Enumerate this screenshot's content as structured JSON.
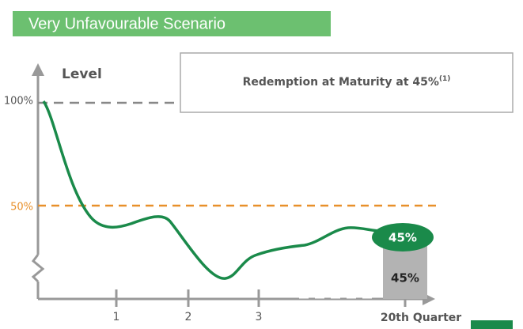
{
  "header": {
    "title": "Very Unfavourable Scenario"
  },
  "y_axis": {
    "label": "Level",
    "levels": [
      "100%",
      "50%"
    ]
  },
  "callout": {
    "text": "Redemption at Maturity at 45%",
    "footnote": "(1)"
  },
  "x_axis": {
    "labels": [
      "1",
      "2",
      "3",
      "20th Quarter"
    ]
  },
  "final": {
    "bubble": "45%",
    "bar": "45%"
  }
}
